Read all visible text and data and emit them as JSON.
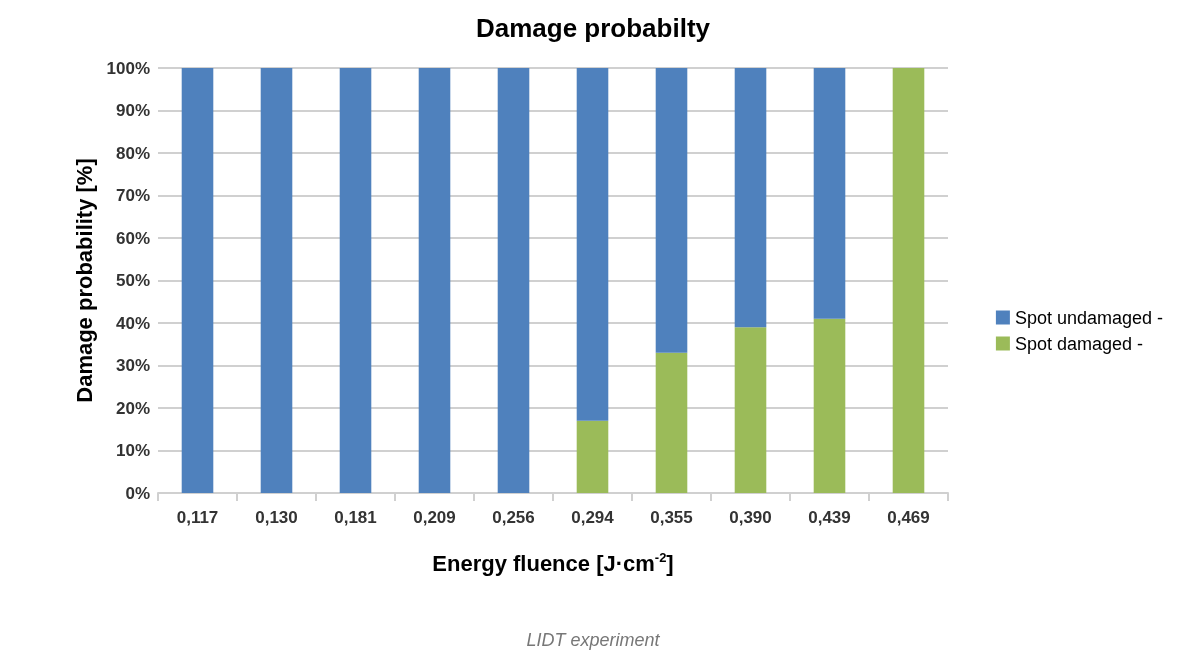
{
  "chart_data": {
    "type": "bar",
    "title": "Damage probabilty",
    "xlabel": "Energy fluence [J·cm$^{-2}$]",
    "ylabel": "Damage probability [%]",
    "annotations": [
      "LIDT experiment"
    ],
    "categories": [
      "0,117",
      "0,130",
      "0,181",
      "0,209",
      "0,256",
      "0,294",
      "0,355",
      "0,390",
      "0,439",
      "0,469"
    ],
    "stacked": true,
    "series": [
      {
        "name": "Spot damaged -",
        "color": "#9bbb59",
        "values": [
          0,
          0,
          0,
          0,
          0,
          17,
          33,
          39,
          41,
          100
        ]
      },
      {
        "name": "Spot undamaged -",
        "color": "#4f81bd",
        "values": [
          100,
          100,
          100,
          100,
          100,
          83,
          67,
          61,
          59,
          0
        ]
      }
    ],
    "ylim": [
      0,
      100
    ],
    "yticks": [
      {
        "value": 0,
        "label": "0%"
      },
      {
        "value": 10,
        "label": "10%"
      },
      {
        "value": 20,
        "label": "20%"
      },
      {
        "value": 30,
        "label": "30%"
      },
      {
        "value": 40,
        "label": "40%"
      },
      {
        "value": 50,
        "label": "50%"
      },
      {
        "value": 60,
        "label": "60%"
      },
      {
        "value": 70,
        "label": "70%"
      },
      {
        "value": 80,
        "label": "80%"
      },
      {
        "value": 90,
        "label": "90%"
      },
      {
        "value": 100,
        "label": "100%"
      }
    ],
    "grid": "y",
    "legend": "right"
  }
}
